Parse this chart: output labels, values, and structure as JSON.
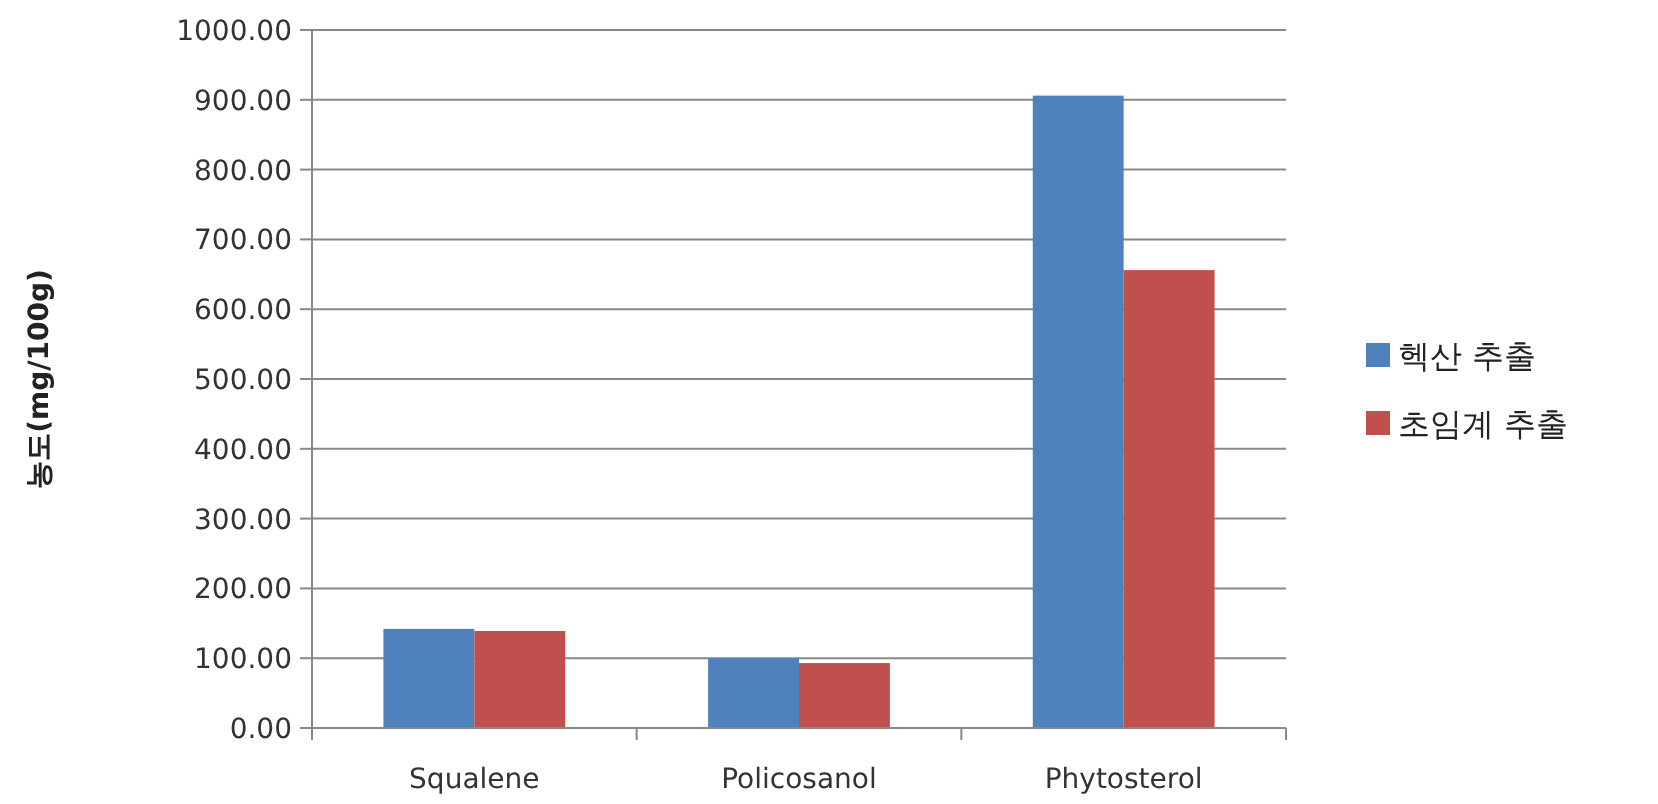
{
  "chart_data": {
    "type": "bar",
    "ylabel": "농도(mg/100g)",
    "categories": [
      "Squalene",
      "Policosanol",
      "Phytosterol"
    ],
    "series": [
      {
        "name": "헥산 추출",
        "color": "#4f81bd",
        "values": [
          142,
          100,
          906
        ]
      },
      {
        "name": "초임계 추출",
        "color": "#c0504d",
        "values": [
          139,
          93,
          656
        ]
      }
    ],
    "ylim": [
      0,
      1000
    ],
    "yticks": [
      {
        "value": 0,
        "label": "0.00"
      },
      {
        "value": 100,
        "label": "100.00"
      },
      {
        "value": 200,
        "label": "200.00"
      },
      {
        "value": 300,
        "label": "300.00"
      },
      {
        "value": 400,
        "label": "400.00"
      },
      {
        "value": 500,
        "label": "500.00"
      },
      {
        "value": 600,
        "label": "600.00"
      },
      {
        "value": 700,
        "label": "700.00"
      },
      {
        "value": 800,
        "label": "800.00"
      },
      {
        "value": 900,
        "label": "900.00"
      },
      {
        "value": 1000,
        "label": "1000.00"
      }
    ],
    "grid": "y",
    "legend": "right"
  }
}
